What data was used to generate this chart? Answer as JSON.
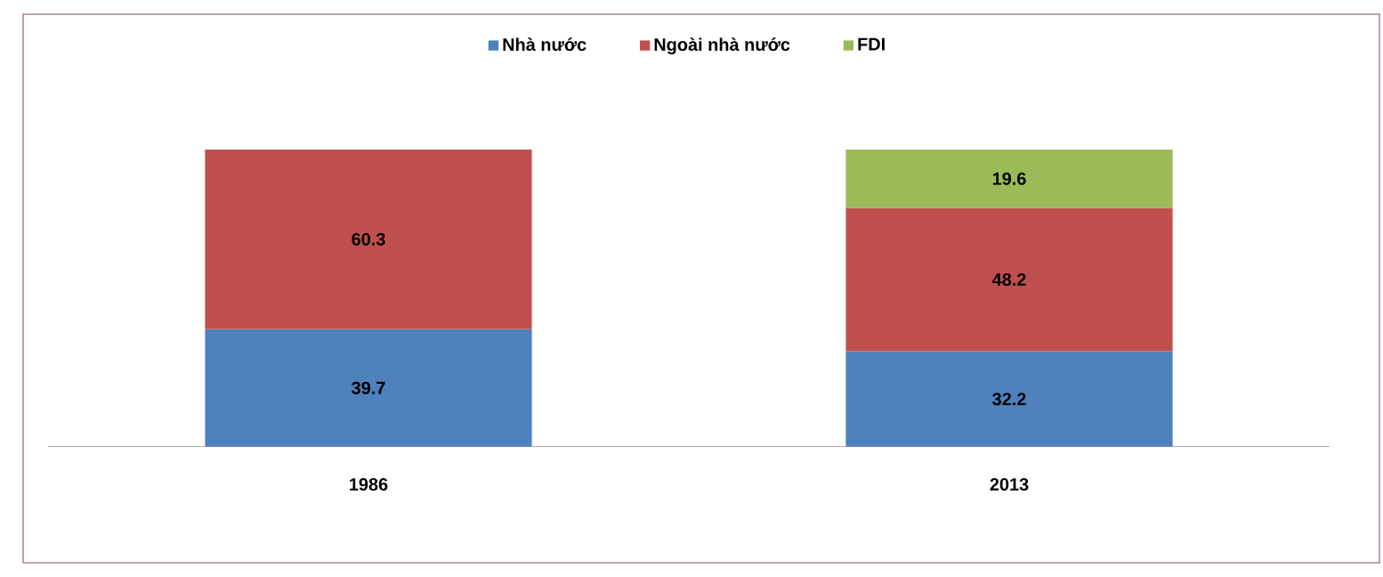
{
  "chart_data": {
    "type": "bar",
    "stacked": true,
    "data_labels": true,
    "legend": "top",
    "categories": [
      "1986",
      "2013"
    ],
    "series": [
      {
        "name": "Nhà nước",
        "color": "#4f81bd",
        "values": [
          39.7,
          32.2
        ]
      },
      {
        "name": "Ngoài nhà nước",
        "color": "#c0504d",
        "values": [
          60.3,
          48.2
        ]
      },
      {
        "name": "FDI",
        "color": "#9bbb59",
        "values": [
          null,
          19.6
        ]
      }
    ]
  }
}
